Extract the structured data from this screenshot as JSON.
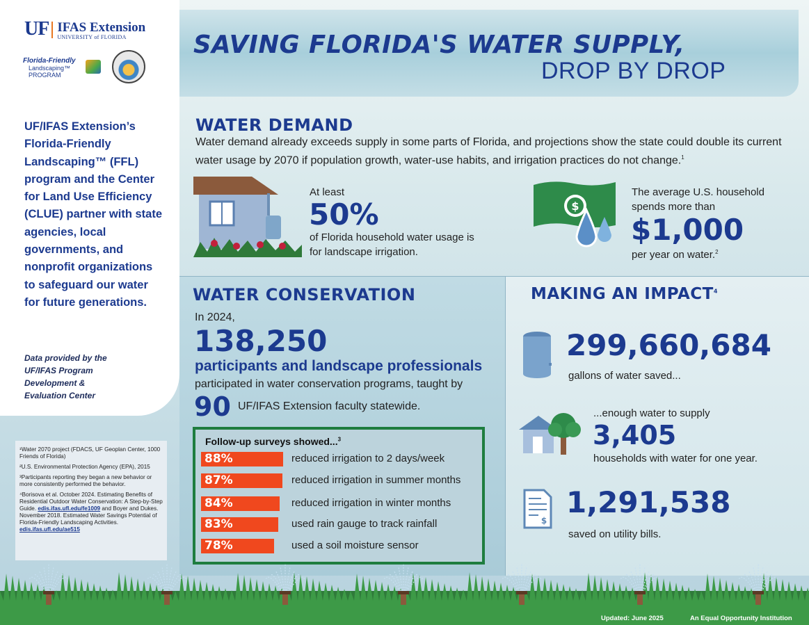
{
  "header": {
    "org_mark": "UF",
    "org_name": "IFAS Extension",
    "org_sub": "UNIVERSITY of FLORIDA",
    "ffl_line1": "Florida-Friendly",
    "ffl_line2": "Landscaping™ PROGRAM",
    "title_line1": "SAVING FLORIDA'S WATER SUPPLY,",
    "title_line2": "DROP BY DROP"
  },
  "sidebar": {
    "intro": "UF/IFAS Extension’s Florida-Friendly Landscaping™ (FFL) program and the Center for Land Use Efficiency (CLUE) partner with state agencies, local governments, and nonprofit organizations to safeguard our water for future generations.",
    "provided": "Data provided by the UF/IFAS Program Development & Evaluation Center",
    "refs": [
      "¹Water 2070 project (FDACS, UF Geoplan Center, 1000 Friends of Florida)",
      "²U.S. Environmental Protection Agency (EPA), 2015",
      "³Participants reporting they began a new behavior or more consistently performed the behavior.",
      "⁴Borisova et al. October 2024. Estimating Benefits of Residential Outdoor Water Conservation: A Step-by-Step Guide."
    ],
    "ref_link1": "edis.ifas.ufl.edu/fe1009",
    "ref_mid": " and Boyer and Dukes. November 2018. Estimated Water Savings Potential of Florida-Friendly Landscaping Activities. ",
    "ref_link2": "edis.ifas.ufl.edu/ae515"
  },
  "water_demand": {
    "title": "WATER DEMAND",
    "body": "Water demand already exceeds supply in some parts of Florida, and projections show the state could double its current water usage by 2070 if population growth, water-use habits, and irrigation practices do not change.",
    "body_sup": "1",
    "stat1_pre": "At least",
    "stat1_big": "50%",
    "stat1_post": "of Florida household water usage is for landscape irrigation.",
    "stat2_pre": "The average U.S. household spends more than",
    "stat2_big": "$1,000",
    "stat2_post": "per year on water.",
    "stat2_sup": "2",
    "money_icon": "dollar-icon"
  },
  "conservation": {
    "title": "WATER CONSERVATION",
    "year_text": "In 2024,",
    "big_number": "138,250",
    "participants": "participants and landscape professionals",
    "participated": "participated in water conservation programs, taught by",
    "faculty_number": "90",
    "faculty_text": "UF/IFAS Extension faculty statewide.",
    "survey_title": "Follow-up surveys showed...",
    "survey_sup": "3",
    "survey": [
      {
        "pct_label": "88%",
        "value": 88,
        "text": "reduced irrigation to 2 days/week"
      },
      {
        "pct_label": "87%",
        "value": 87,
        "text": "reduced irrigation in summer months"
      },
      {
        "pct_label": "84%",
        "value": 84,
        "text": "reduced irrigation in winter months"
      },
      {
        "pct_label": "83%",
        "value": 83,
        "text": "used rain gauge to track rainfall"
      },
      {
        "pct_label": "78%",
        "value": 78,
        "text": "used a soil moisture sensor"
      }
    ],
    "bar_color": "#f0481e"
  },
  "impact": {
    "title": "MAKING AN IMPACT",
    "title_sup": "4",
    "gallons_big": "299,660,684",
    "gallons_text": "gallons of water saved...",
    "supply_pre": "...enough water to supply",
    "households_big": "3,405",
    "households_text": "households with water for one year.",
    "dollars_big": "1,291,538",
    "dollars_text": "saved on utility bills."
  },
  "footer": {
    "updated": "Updated: June 2025",
    "equal": "An Equal Opportunity Institution"
  },
  "colors": {
    "navy": "#1c3a8f",
    "accent_orange": "#f0481e",
    "survey_border": "#1e7d3f"
  }
}
